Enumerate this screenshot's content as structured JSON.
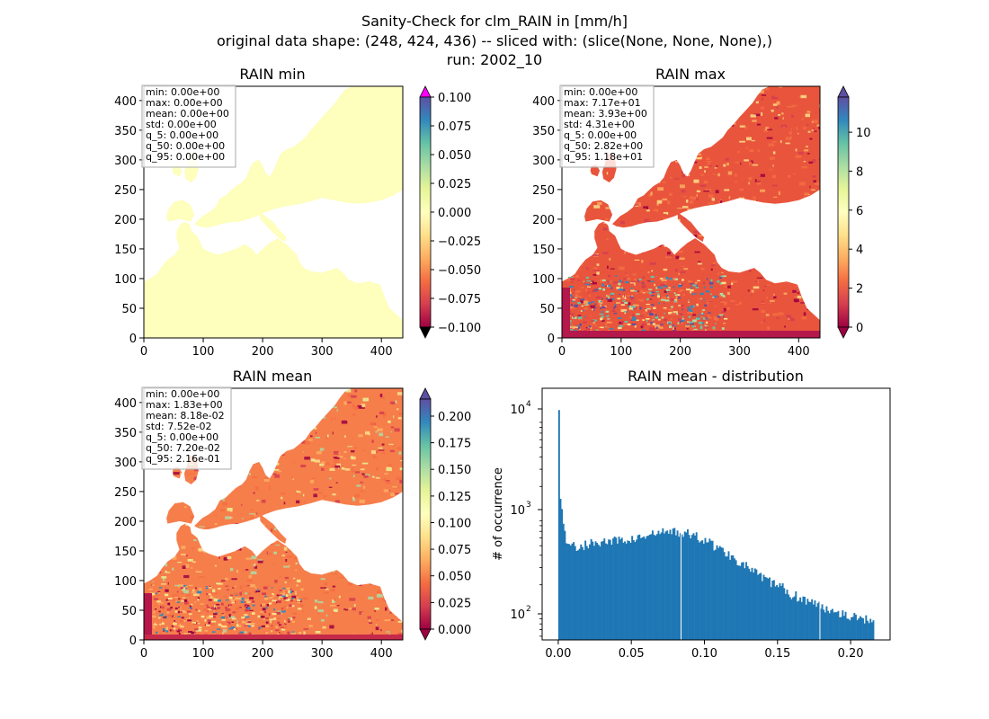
{
  "title_lines": [
    "Sanity-Check for clm_RAIN in [mm/h]",
    "original data shape: (248, 424, 436) -- sliced with: (slice(None, None, None),)",
    "run: 2002_10"
  ],
  "colors": {
    "land_min": "#FEFEBD",
    "hist_bar": "#1F77B4",
    "spectral": [
      "#9E0142",
      "#D53E4F",
      "#F46D43",
      "#FDAE61",
      "#FEE08B",
      "#FFFFBF",
      "#E6F598",
      "#ABDDA4",
      "#66C2A5",
      "#3288BD",
      "#5E4FA2"
    ],
    "over_min": "#FF00FF",
    "under_min": "#000000"
  },
  "panels": {
    "min": {
      "title": "RAIN min",
      "xticks": [
        "0",
        "100",
        "200",
        "300",
        "400"
      ],
      "yticks": [
        "0",
        "50",
        "100",
        "150",
        "200",
        "250",
        "300",
        "350",
        "400"
      ],
      "stats": [
        "min: 0.00e+00",
        "max: 0.00e+00",
        "mean: 0.00e+00",
        "std: 0.00e+00",
        "q_5: 0.00e+00",
        "q_50: 0.00e+00",
        "q_95: 0.00e+00"
      ],
      "cbar_ticks": [
        "0.100",
        "0.075",
        "0.050",
        "0.025",
        "0.000",
        "−0.025",
        "−0.050",
        "−0.075",
        "−0.100"
      ]
    },
    "max": {
      "title": "RAIN max",
      "xticks": [
        "0",
        "100",
        "200",
        "300",
        "400"
      ],
      "yticks": [
        "0",
        "50",
        "100",
        "150",
        "200",
        "250",
        "300",
        "350",
        "400"
      ],
      "stats": [
        "min: 0.00e+00",
        "max: 7.17e+01",
        "mean: 3.93e+00",
        "std: 4.31e+00",
        "q_5: 0.00e+00",
        "q_50: 2.82e+00",
        "q_95: 1.18e+01"
      ],
      "cbar_ticks": [
        "10",
        "8",
        "6",
        "4",
        "2",
        "0"
      ]
    },
    "mean": {
      "title": "RAIN mean",
      "xticks": [
        "0",
        "100",
        "200",
        "300",
        "400"
      ],
      "yticks": [
        "0",
        "50",
        "100",
        "150",
        "200",
        "250",
        "300",
        "350",
        "400"
      ],
      "stats": [
        "min: 0.00e+00",
        "max: 1.83e+00",
        "mean: 8.18e-02",
        "std: 7.52e-02",
        "q_5: 0.00e+00",
        "q_50: 7.20e-02",
        "q_95: 2.16e-01"
      ],
      "cbar_ticks": [
        "0.200",
        "0.175",
        "0.150",
        "0.125",
        "0.100",
        "0.075",
        "0.050",
        "0.025",
        "0.000"
      ]
    },
    "dist": {
      "title": "RAIN mean - distribution",
      "ylabel": "# of occurrence",
      "xticks": [
        "0.00",
        "0.05",
        "0.10",
        "0.15",
        "0.20"
      ],
      "yticks": [
        "10",
        "10",
        "10"
      ],
      "yexp": [
        "4",
        "3",
        "2"
      ]
    }
  },
  "chart_data": [
    {
      "type": "heatmap",
      "title": "RAIN min",
      "xlim": [
        0,
        436
      ],
      "ylim": [
        0,
        424
      ],
      "colorbar": {
        "min": -0.1,
        "max": 0.1,
        "extend": "both"
      },
      "note": "All land values equal 0.00e+00; sea masked"
    },
    {
      "type": "heatmap",
      "title": "RAIN max",
      "xlim": [
        0,
        436
      ],
      "ylim": [
        0,
        424
      ],
      "colorbar": {
        "min": 0,
        "max": 11.8,
        "extend": "both"
      }
    },
    {
      "type": "heatmap",
      "title": "RAIN mean",
      "xlim": [
        0,
        436
      ],
      "ylim": [
        0,
        424
      ],
      "colorbar": {
        "min": 0,
        "max": 0.216,
        "extend": "both"
      }
    },
    {
      "type": "bar",
      "title": "RAIN mean - distribution",
      "ylabel": "# of occurrence",
      "yscale": "log",
      "xlim": [
        -0.011,
        0.227
      ],
      "ylim": [
        55,
        20000
      ],
      "profile_x": [
        0.0,
        0.001,
        0.003,
        0.005,
        0.008,
        0.012,
        0.02,
        0.03,
        0.04,
        0.05,
        0.06,
        0.07,
        0.08,
        0.09,
        0.1,
        0.11,
        0.12,
        0.13,
        0.14,
        0.15,
        0.16,
        0.17,
        0.18,
        0.19,
        0.2,
        0.21,
        0.216
      ],
      "profile_y": [
        12000,
        1500,
        1000,
        600,
        520,
        480,
        520,
        550,
        560,
        580,
        620,
        680,
        700,
        650,
        580,
        470,
        380,
        300,
        230,
        200,
        160,
        140,
        120,
        110,
        95,
        90,
        85
      ],
      "gaps_x": [
        0.084,
        0.179
      ]
    }
  ]
}
